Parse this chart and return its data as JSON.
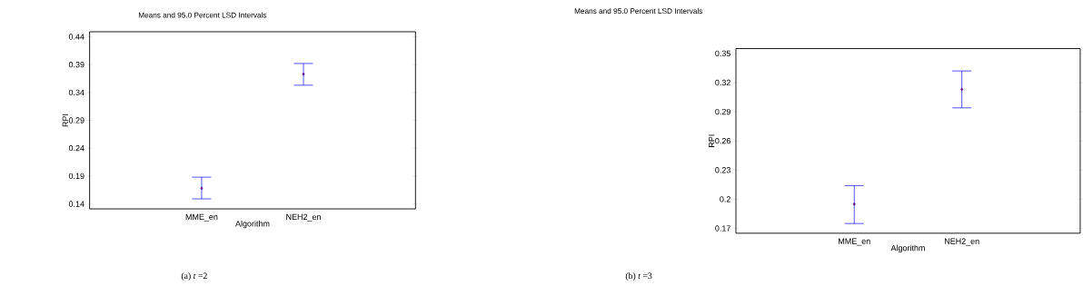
{
  "chart_data": [
    {
      "type": "scatter",
      "title": "Means and 95.0 Percent LSD Intervals",
      "xlabel": "Algorithm",
      "ylabel": "RPI",
      "categories": [
        "MME_en",
        "NEH2_en"
      ],
      "series": [
        {
          "color": "#0000ff",
          "values": [
            0.168,
            0.373
          ],
          "errors": [
            [
              0.149,
              0.188
            ],
            [
              0.353,
              0.392
            ]
          ]
        }
      ],
      "ylim": [
        0.131,
        0.449
      ],
      "yticks": [
        0.14,
        0.19,
        0.24,
        0.29,
        0.34,
        0.39,
        0.44
      ],
      "marker": "diamond",
      "annotations": [
        "(a) *t* =2"
      ]
    },
    {
      "type": "scatter",
      "title": "Means and 95.0 Percent LSD Intervals",
      "xlabel": "Algorithm",
      "ylabel": "RPI",
      "categories": [
        "MME_en",
        "NEH2_en"
      ],
      "series": [
        {
          "color": "#0000ff",
          "values": [
            0.195,
            0.313
          ],
          "errors": [
            [
              0.175,
              0.214
            ],
            [
              0.294,
              0.332
            ]
          ]
        }
      ],
      "ylim": [
        0.165,
        0.355
      ],
      "yticks": [
        0.17,
        0.2,
        0.23,
        0.26,
        0.29,
        0.32,
        0.35
      ],
      "marker": "diamond",
      "annotations": [
        "(b) *t* =3"
      ]
    }
  ]
}
